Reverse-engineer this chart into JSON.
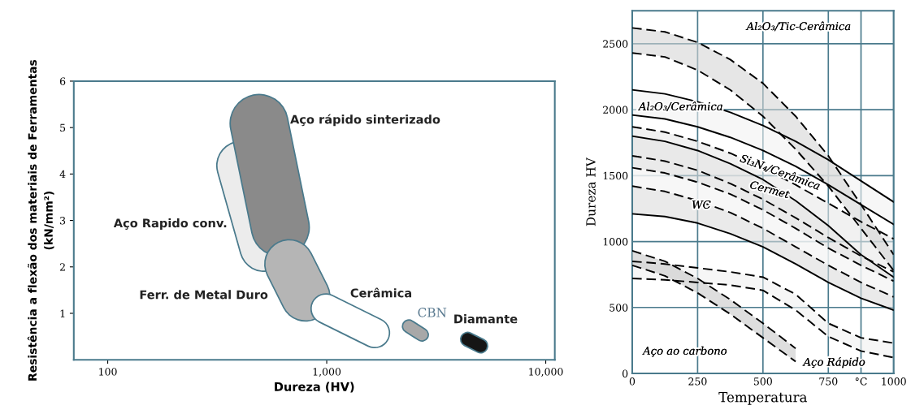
{
  "chart_data": [
    {
      "type": "line",
      "xlabel": "Dureza (HV)",
      "ylabel": "Resistência a flexão dos materiais de Ferramentas\n(kN/mm²)",
      "log": "x",
      "xlim": [
        70,
        11000
      ],
      "xticks": [
        {
          "value": 100,
          "label": "100"
        },
        {
          "value": 1000,
          "label": "1,000"
        },
        {
          "value": 10000,
          "label": "10,000"
        }
      ],
      "ylim": [
        0,
        6
      ],
      "yticks": [
        1,
        2,
        3,
        4,
        5,
        6
      ],
      "grid": false,
      "legend": false,
      "series": [
        {
          "color": "#ececec",
          "x": [
            407,
            518
          ],
          "values": [
            4.18,
            2.43
          ]
        },
        {
          "color": "#8a8a8a",
          "x": [
            491,
            614
          ],
          "values": [
            5.09,
            2.85
          ]
        },
        {
          "color": "#b5b5b5",
          "x": [
            674,
            800
          ],
          "values": [
            2.06,
            1.36
          ]
        },
        {
          "color": "#ffffff",
          "x": [
            991,
            1656
          ],
          "values": [
            1.1,
            0.58
          ]
        },
        {
          "color": "#a8a8a8",
          "x": [
            2371,
            2722
          ],
          "values": [
            0.72,
            0.54
          ]
        },
        {
          "color": "#151515",
          "x": [
            4395,
            5048
          ],
          "values": [
            0.44,
            0.3
          ]
        }
      ],
      "annotations": [
        "Aço rápido sinterizado",
        "Aço Rapido conv.",
        "Ferr. de Metal Duro",
        "Cerâmica",
        "CBN",
        "Diamante"
      ]
    },
    {
      "type": "line",
      "xlabel": "Temperatura",
      "ylabel": "Dureza HV",
      "xlim": [
        0,
        1000
      ],
      "xticks": [
        0,
        250,
        500,
        750,
        {
          "value": 875,
          "label": "°C"
        },
        1000
      ],
      "ylim": [
        0,
        2750
      ],
      "yticks": [
        0,
        500,
        1000,
        1500,
        2000,
        2500
      ],
      "grid": true,
      "legend": false,
      "series": [
        {
          "color": "#000000",
          "line_style": "solid",
          "x": [
            0,
            125,
            250,
            375,
            500,
            625,
            750,
            875,
            1000
          ],
          "values": [
            1800,
            1760,
            1690,
            1590,
            1470,
            1310,
            1120,
            900,
            730
          ],
          "upper": [
            1800,
            1760,
            1690,
            1590,
            1470,
            1310,
            1120,
            900,
            730
          ],
          "lower": [
            1210,
            1190,
            1140,
            1060,
            960,
            830,
            690,
            570,
            480
          ]
        },
        {
          "color": "#000000",
          "line_style": "solid",
          "x": [
            0,
            125,
            250,
            375,
            500,
            625,
            750,
            875,
            1000
          ],
          "values": [
            1210,
            1190,
            1140,
            1060,
            960,
            830,
            690,
            570,
            480
          ]
        },
        {
          "color": "#000000",
          "line_style": "dashed",
          "x": [
            0,
            125,
            250,
            375,
            500,
            625,
            750,
            875,
            1000
          ],
          "values": [
            1560,
            1520,
            1450,
            1360,
            1240,
            1100,
            950,
            820,
            700
          ],
          "upper": [
            1560,
            1520,
            1450,
            1360,
            1240,
            1100,
            950,
            820,
            700
          ],
          "lower": [
            1420,
            1380,
            1310,
            1220,
            1100,
            960,
            820,
            690,
            580
          ]
        },
        {
          "color": "#000000",
          "line_style": "dashed",
          "x": [
            0,
            125,
            250,
            375,
            500,
            625,
            750,
            875,
            1000
          ],
          "values": [
            1420,
            1380,
            1310,
            1220,
            1100,
            960,
            820,
            690,
            580
          ]
        },
        {
          "color": "#000000",
          "line_style": "dashed",
          "x": [
            0,
            125,
            250,
            375,
            500,
            625,
            750,
            875,
            1000
          ],
          "values": [
            1870,
            1830,
            1760,
            1670,
            1560,
            1430,
            1290,
            1150,
            1020
          ],
          "upper": [
            1870,
            1830,
            1760,
            1670,
            1560,
            1430,
            1290,
            1150,
            1020
          ],
          "lower": [
            1650,
            1610,
            1540,
            1440,
            1320,
            1180,
            1030,
            890,
            770
          ]
        },
        {
          "color": "#000000",
          "line_style": "dashed",
          "x": [
            0,
            125,
            250,
            375,
            500,
            625,
            750,
            875,
            1000
          ],
          "values": [
            1650,
            1610,
            1540,
            1440,
            1320,
            1180,
            1030,
            890,
            770
          ]
        },
        {
          "color": "#000000",
          "line_style": "solid",
          "x": [
            0,
            125,
            250,
            375,
            500,
            625,
            750,
            875,
            1000
          ],
          "values": [
            2150,
            2120,
            2060,
            1980,
            1880,
            1760,
            1620,
            1460,
            1300
          ],
          "upper": [
            2150,
            2120,
            2060,
            1980,
            1880,
            1760,
            1620,
            1460,
            1300
          ],
          "lower": [
            1960,
            1930,
            1870,
            1790,
            1690,
            1570,
            1430,
            1280,
            1130
          ]
        },
        {
          "color": "#000000",
          "line_style": "solid",
          "x": [
            0,
            125,
            250,
            375,
            500,
            625,
            750,
            875,
            1000
          ],
          "values": [
            1960,
            1930,
            1870,
            1790,
            1690,
            1570,
            1430,
            1280,
            1130
          ]
        },
        {
          "color": "#000000",
          "line_style": "dashed",
          "x": [
            0,
            125,
            250,
            375,
            500,
            625,
            750,
            875,
            1000
          ],
          "values": [
            2620,
            2590,
            2510,
            2380,
            2200,
            1950,
            1650,
            1280,
            900
          ],
          "upper": [
            2620,
            2590,
            2510,
            2380,
            2200,
            1950,
            1650,
            1280,
            900
          ],
          "lower": [
            2430,
            2400,
            2300,
            2150,
            1950,
            1700,
            1420,
            1100,
            780
          ]
        },
        {
          "color": "#000000",
          "line_style": "dashed",
          "x": [
            0,
            125,
            250,
            375,
            500,
            625,
            750,
            875,
            1000
          ],
          "values": [
            2430,
            2400,
            2300,
            2150,
            1950,
            1700,
            1420,
            1100,
            780
          ]
        },
        {
          "color": "#000000",
          "line_style": "dashed",
          "x": [
            0,
            125,
            250,
            375,
            500,
            625,
            750,
            875,
            1000
          ],
          "values": [
            850,
            830,
            800,
            770,
            730,
            600,
            380,
            270,
            230
          ],
          "upper": [
            850,
            830,
            800,
            770,
            730,
            600,
            380,
            270,
            230
          ],
          "lower": [
            720,
            710,
            690,
            670,
            630,
            480,
            280,
            170,
            120
          ]
        },
        {
          "color": "#000000",
          "line_style": "dashed",
          "x": [
            0,
            125,
            250,
            375,
            500,
            625,
            750,
            875,
            1000
          ],
          "values": [
            720,
            710,
            690,
            670,
            630,
            480,
            280,
            170,
            120
          ]
        },
        {
          "color": "#000000",
          "line_style": "dashed",
          "x": [
            0,
            125,
            250,
            375,
            500,
            625
          ],
          "values": [
            930,
            850,
            720,
            560,
            380,
            190
          ],
          "upper": [
            930,
            850,
            720,
            560,
            380,
            190
          ],
          "lower": [
            820,
            740,
            610,
            450,
            270,
            90
          ]
        },
        {
          "color": "#000000",
          "line_style": "dashed",
          "x": [
            0,
            125,
            250,
            375,
            500,
            625
          ],
          "values": [
            820,
            740,
            610,
            450,
            270,
            90
          ]
        }
      ],
      "annotations": [
        "Al₂O₃/Tic-Cerâmica",
        "Al₂O₃/Cerâmica",
        "Si₃N₄/Cerâmica",
        "Cermet",
        "WC",
        "Aço ao carbono",
        "Aço Rápido"
      ]
    }
  ]
}
